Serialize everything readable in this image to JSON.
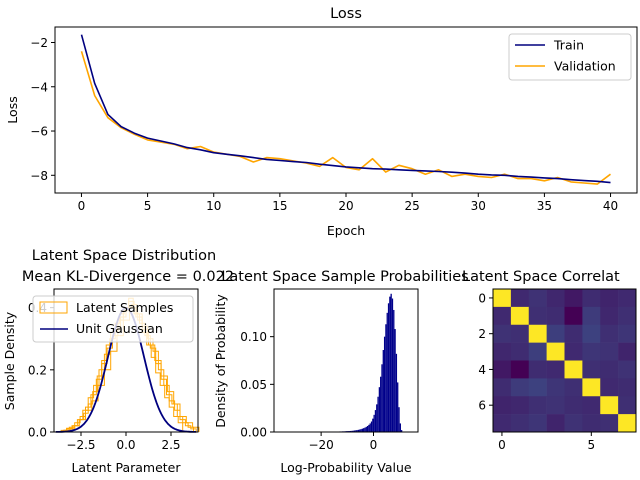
{
  "chart_data": [
    {
      "type": "line",
      "title": "Loss",
      "xlabel": "Epoch",
      "ylabel": "Loss",
      "xlim": [
        -2,
        42
      ],
      "ylim": [
        -8.8,
        -1.3
      ],
      "xticks": [
        0,
        5,
        10,
        15,
        20,
        25,
        30,
        35,
        40
      ],
      "yticks": [
        -8,
        -6,
        -4,
        -2
      ],
      "legend_position": "top-right",
      "x": [
        0,
        1,
        2,
        3,
        4,
        5,
        6,
        7,
        8,
        9,
        10,
        11,
        12,
        13,
        14,
        15,
        16,
        17,
        18,
        19,
        20,
        21,
        22,
        23,
        24,
        25,
        26,
        27,
        28,
        29,
        30,
        31,
        32,
        33,
        34,
        35,
        36,
        37,
        38,
        39,
        40
      ],
      "series": [
        {
          "name": "Train",
          "color": "#00007f",
          "values": [
            -1.65,
            -3.85,
            -5.25,
            -5.8,
            -6.1,
            -6.32,
            -6.45,
            -6.58,
            -6.75,
            -6.85,
            -6.98,
            -7.05,
            -7.12,
            -7.2,
            -7.28,
            -7.33,
            -7.38,
            -7.42,
            -7.5,
            -7.56,
            -7.62,
            -7.66,
            -7.7,
            -7.72,
            -7.75,
            -7.78,
            -7.8,
            -7.83,
            -7.86,
            -7.9,
            -7.95,
            -7.98,
            -8.0,
            -8.05,
            -8.08,
            -8.12,
            -8.15,
            -8.2,
            -8.24,
            -8.27,
            -8.33
          ]
        },
        {
          "name": "Validation",
          "color": "#ffa500",
          "values": [
            -2.4,
            -4.4,
            -5.4,
            -5.85,
            -6.15,
            -6.4,
            -6.5,
            -6.6,
            -6.8,
            -6.7,
            -6.95,
            -7.05,
            -7.15,
            -7.4,
            -7.2,
            -7.25,
            -7.35,
            -7.45,
            -7.6,
            -7.2,
            -7.65,
            -7.75,
            -7.25,
            -7.85,
            -7.55,
            -7.7,
            -7.95,
            -7.75,
            -8.05,
            -7.95,
            -8.05,
            -8.1,
            -7.95,
            -8.15,
            -8.15,
            -8.25,
            -8.1,
            -8.3,
            -8.35,
            -8.4,
            -7.95
          ]
        }
      ]
    },
    {
      "type": "histogram",
      "title_line1": "Latent Space Distribution",
      "title_line2": "Mean KL-Divergence = 0.022",
      "xlabel": "Latent Parameter",
      "ylabel": "Sample Density",
      "xlim": [
        -4.0,
        4.0
      ],
      "ylim": [
        0,
        0.46
      ],
      "xticks": [
        -2.5,
        0.0,
        2.5
      ],
      "yticks": [
        0.0,
        0.2,
        0.4
      ],
      "legend_position": "top-left",
      "legend": [
        {
          "name": "Latent Samples",
          "color": "#ffa500",
          "style": "step"
        },
        {
          "name": "Unit Gaussian",
          "color": "#00007f",
          "style": "line"
        }
      ],
      "sample_histograms": [
        {
          "bin_start": -3.6,
          "bin_width": 0.3,
          "values": [
            0.005,
            0.012,
            0.02,
            0.04,
            0.07,
            0.11,
            0.15,
            0.2,
            0.25,
            0.3,
            0.33,
            0.37,
            0.4,
            0.41,
            0.38,
            0.34,
            0.3,
            0.26,
            0.2,
            0.15,
            0.1,
            0.07,
            0.04,
            0.02,
            0.01
          ]
        },
        {
          "bin_start": -3.45,
          "bin_width": 0.3,
          "values": [
            0.006,
            0.015,
            0.03,
            0.05,
            0.08,
            0.12,
            0.17,
            0.22,
            0.27,
            0.31,
            0.36,
            0.39,
            0.42,
            0.38,
            0.35,
            0.31,
            0.27,
            0.22,
            0.17,
            0.12,
            0.09,
            0.05,
            0.03,
            0.015
          ]
        },
        {
          "bin_start": -3.3,
          "bin_width": 0.35,
          "values": [
            0.01,
            0.02,
            0.04,
            0.07,
            0.1,
            0.15,
            0.2,
            0.26,
            0.31,
            0.36,
            0.4,
            0.37,
            0.33,
            0.28,
            0.23,
            0.18,
            0.13,
            0.09,
            0.05,
            0.03,
            0.015
          ]
        },
        {
          "bin_start": -3.1,
          "bin_width": 0.25,
          "values": [
            0.01,
            0.02,
            0.04,
            0.06,
            0.09,
            0.13,
            0.18,
            0.23,
            0.28,
            0.32,
            0.35,
            0.38,
            0.4,
            0.43,
            0.4,
            0.36,
            0.32,
            0.28,
            0.24,
            0.19,
            0.15,
            0.11,
            0.08,
            0.05,
            0.03
          ]
        }
      ],
      "gaussian": {
        "mean": 0,
        "std": 1,
        "x_range": [
          -3.9,
          3.9
        ]
      }
    },
    {
      "type": "histogram",
      "title": "Latent Space Sample Probabilities",
      "xlabel": "Log-Probability Value",
      "ylabel": "Density of Probability",
      "xlim": [
        -38,
        17
      ],
      "ylim": [
        0,
        0.15
      ],
      "xticks": [
        -20,
        0
      ],
      "yticks": [
        0.0,
        0.05,
        0.1
      ],
      "color": "#00008b",
      "bin_start": -16,
      "bin_width": 0.5,
      "values": [
        0.0003,
        0.0003,
        0.0004,
        0.0004,
        0.0005,
        0.0005,
        0.0006,
        0.0006,
        0.0007,
        0.0007,
        0.0008,
        0.0009,
        0.001,
        0.001,
        0.0011,
        0.0012,
        0.0014,
        0.0016,
        0.0018,
        0.002,
        0.0023,
        0.0026,
        0.003,
        0.0035,
        0.004,
        0.0046,
        0.0054,
        0.0063,
        0.0075,
        0.009,
        0.011,
        0.014,
        0.018,
        0.023,
        0.029,
        0.037,
        0.047,
        0.058,
        0.071,
        0.086,
        0.1,
        0.113,
        0.125,
        0.135,
        0.142,
        0.145,
        0.14,
        0.128,
        0.108,
        0.082,
        0.052,
        0.026,
        0.009,
        0.002
      ]
    },
    {
      "type": "heatmap",
      "title": "Latent Space Correlat",
      "xticks": [
        0,
        5
      ],
      "yticks": [
        0,
        2,
        4,
        6
      ],
      "size": 8,
      "colormap": "viridis",
      "vmin": -0.12,
      "vmax": 1.0,
      "matrix": [
        [
          1.0,
          0.02,
          0.05,
          0.01,
          -0.04,
          0.03,
          0.0,
          0.02
        ],
        [
          0.02,
          1.0,
          0.04,
          0.03,
          -0.12,
          0.08,
          0.01,
          0.04
        ],
        [
          0.05,
          0.04,
          1.0,
          0.09,
          0.03,
          0.1,
          0.04,
          0.06
        ],
        [
          0.01,
          0.03,
          0.09,
          1.0,
          0.02,
          0.06,
          0.05,
          0.0
        ],
        [
          -0.04,
          -0.12,
          0.03,
          0.02,
          1.0,
          0.04,
          0.03,
          0.05
        ],
        [
          0.03,
          0.08,
          0.1,
          0.06,
          0.04,
          1.0,
          0.02,
          0.03
        ],
        [
          0.0,
          0.01,
          0.04,
          0.05,
          0.03,
          0.02,
          1.0,
          0.04
        ],
        [
          0.02,
          0.04,
          0.06,
          0.0,
          0.05,
          0.03,
          0.04,
          1.0
        ]
      ]
    }
  ]
}
